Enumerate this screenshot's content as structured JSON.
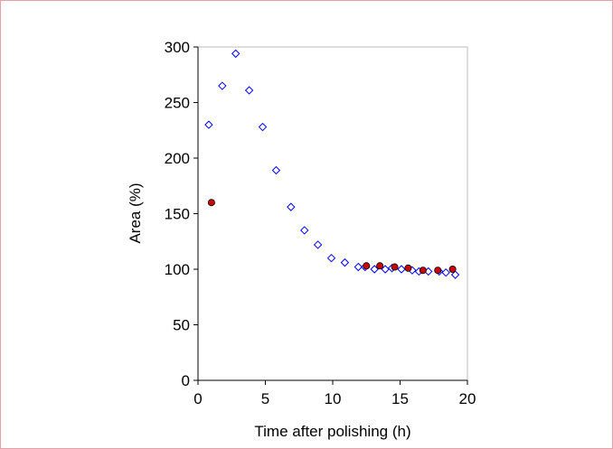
{
  "chart_data": {
    "type": "scatter",
    "title": "",
    "xlabel": "Time after polishing (h)",
    "ylabel": "Area (%)",
    "xlim": [
      0,
      20
    ],
    "ylim": [
      0,
      300
    ],
    "xticks": [
      0,
      5,
      10,
      15,
      20
    ],
    "yticks": [
      0,
      50,
      100,
      150,
      200,
      250,
      300
    ],
    "grid": false,
    "legend": "none",
    "series": [
      {
        "marker": "diamond-open",
        "color": "#0000ff",
        "x": [
          0.8,
          1.8,
          2.8,
          3.8,
          4.8,
          5.8,
          6.9,
          7.9,
          8.9,
          9.9,
          10.9,
          11.9,
          12.4,
          13.1,
          13.9,
          14.4,
          15.1,
          15.9,
          16.4,
          17.1,
          17.9,
          18.4,
          19.1
        ],
        "y": [
          230,
          265,
          294,
          261,
          228,
          189,
          156,
          135,
          122,
          110,
          106,
          102,
          102,
          100,
          100,
          101,
          100,
          99,
          98,
          98,
          98,
          97,
          95
        ]
      },
      {
        "marker": "circle-filled",
        "color": "#cc0000",
        "x": [
          1.0,
          12.5,
          13.5,
          14.6,
          15.6,
          16.7,
          17.8,
          18.9
        ],
        "y": [
          160,
          103,
          103,
          102,
          101,
          99,
          99,
          100
        ]
      }
    ]
  }
}
